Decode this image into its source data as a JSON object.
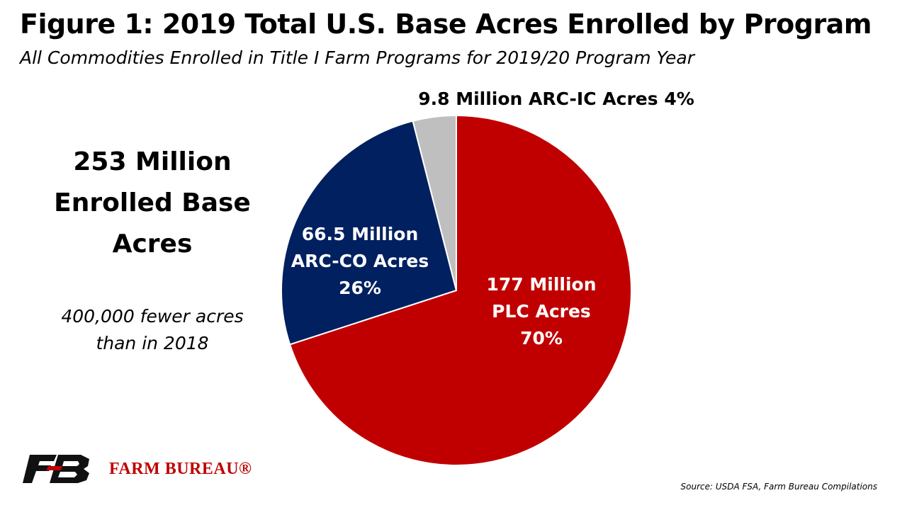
{
  "header": {
    "title": "Figure 1: 2019 Total U.S. Base Acres Enrolled by Program",
    "subtitle": "All Commodities Enrolled in Title I Farm Programs for 2019/20 Program Year"
  },
  "summary": {
    "total_lines": [
      "253 Million",
      "Enrolled Base",
      "Acres"
    ],
    "note_lines": [
      "400,000 fewer acres",
      "than in 2018"
    ]
  },
  "chart_data": {
    "type": "pie",
    "title": "Figure 1: 2019 Total U.S. Base Acres Enrolled by Program",
    "unit": "Million acres",
    "slices": [
      {
        "name": "PLC",
        "value": 177,
        "percent": 70,
        "color": "#c00000",
        "label_lines": [
          "177 Million",
          "PLC Acres",
          "70%"
        ],
        "label_color": "#ffffff"
      },
      {
        "name": "ARC-CO",
        "value": 66.5,
        "percent": 26,
        "color": "#002060",
        "label_lines": [
          "66.5 Million",
          "ARC-CO Acres",
          "26%"
        ],
        "label_color": "#ffffff"
      },
      {
        "name": "ARC-IC",
        "value": 9.8,
        "percent": 4,
        "color": "#bfbfbf",
        "label_lines": [
          "9.8 Million ARC-IC Acres 4%"
        ],
        "label_color": "#000000"
      }
    ]
  },
  "footer": {
    "brand": "FARM BUREAU®",
    "source": "Source: USDA FSA, Farm Bureau Compilations"
  },
  "colors": {
    "plc": "#c00000",
    "arc_co": "#002060",
    "arc_ic": "#bfbfbf",
    "brand": "#c00000"
  }
}
